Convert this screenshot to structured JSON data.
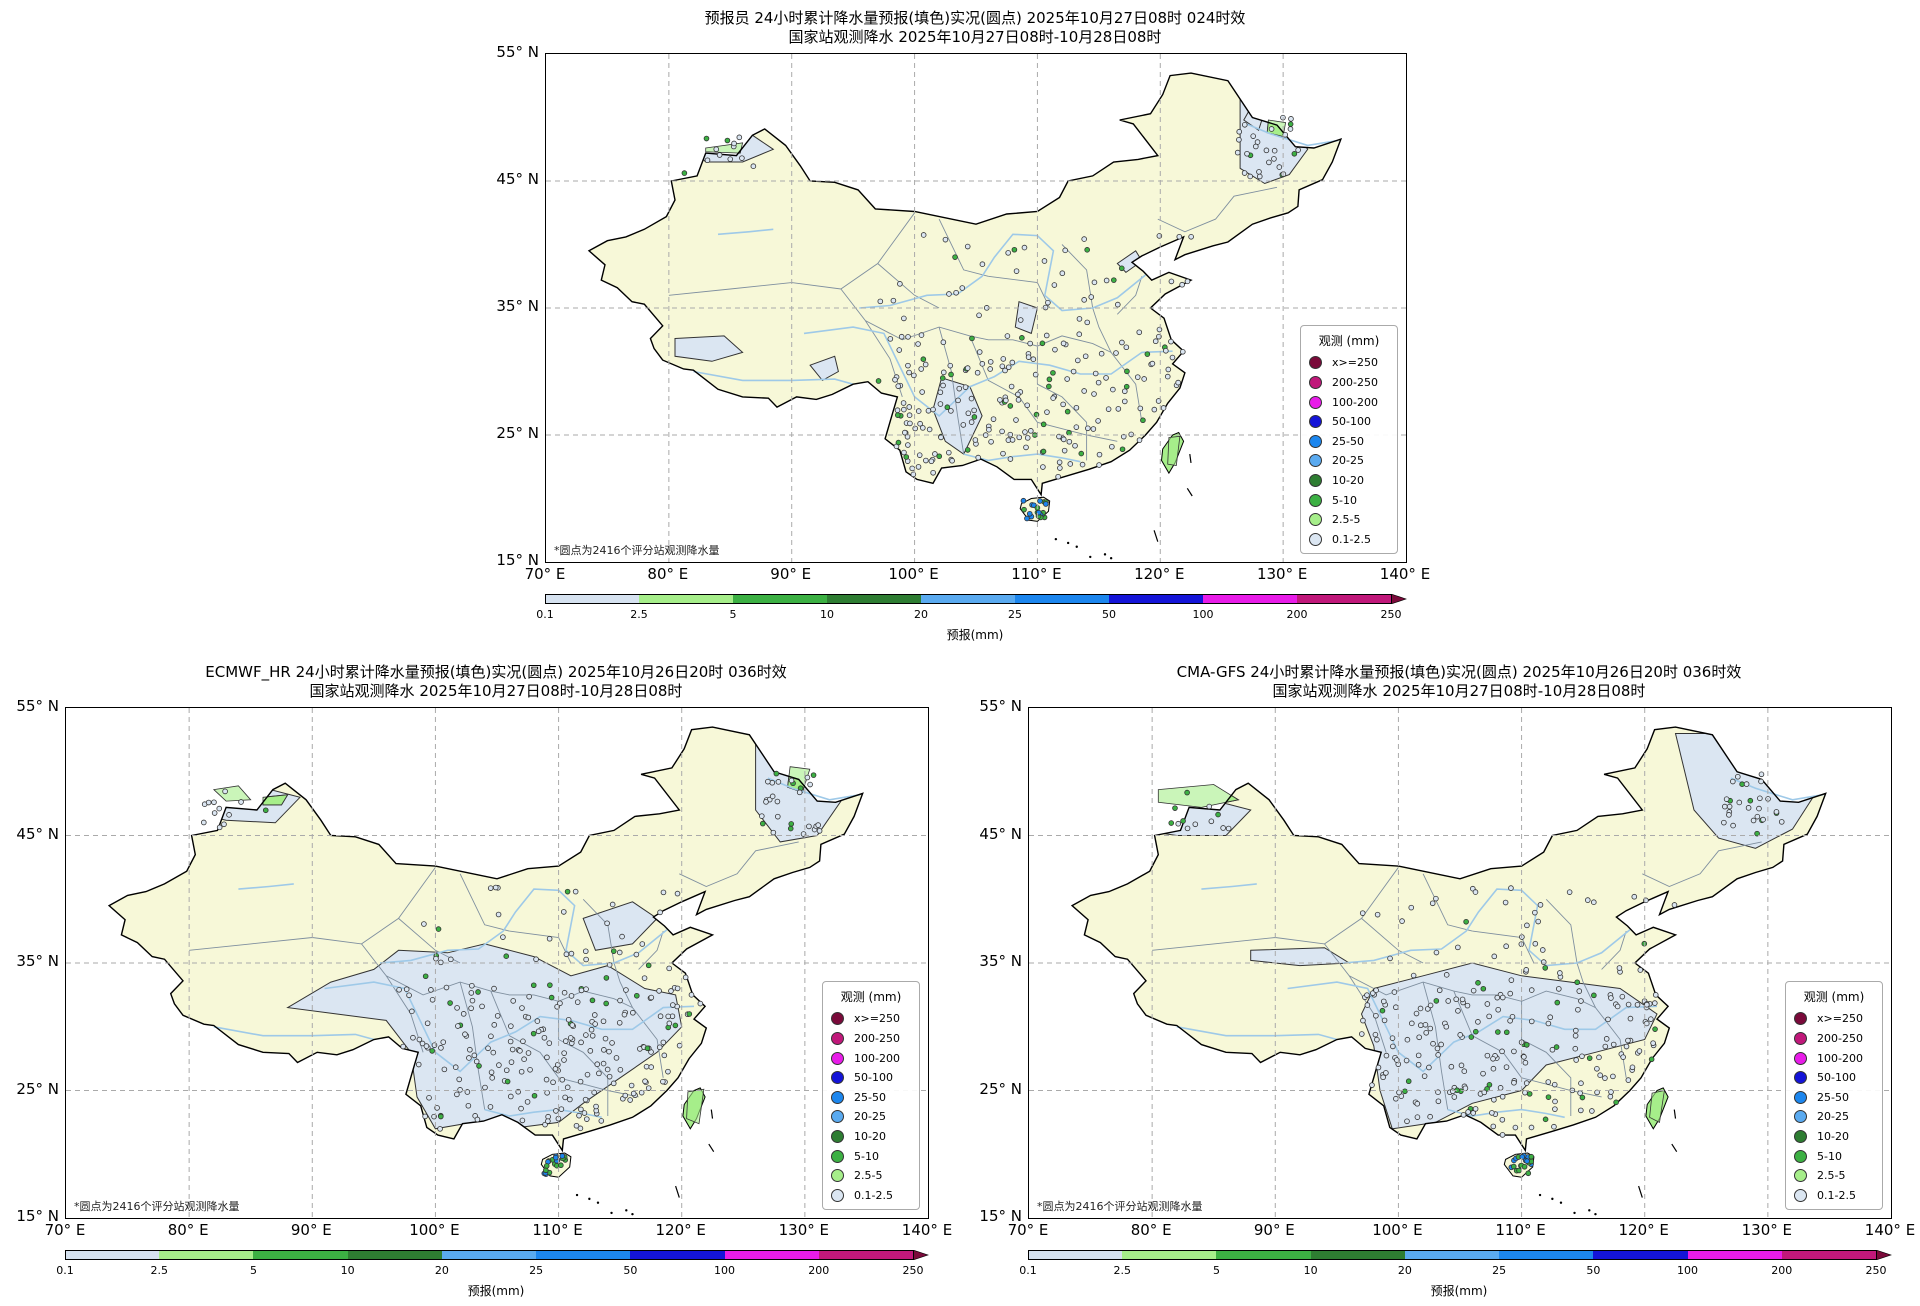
{
  "panels": [
    {
      "title_line1": "预报员 24小时累计降水量预报(填色)实况(圆点) 2025年10月27日08时 024时效",
      "title_line2": "国家站观测降水 2025年10月27日08时-10月28日08时"
    },
    {
      "title_line1": "ECMWF_HR 24小时累计降水量预报(填色)实况(圆点) 2025年10月26日20时 036时效",
      "title_line2": "国家站观测降水 2025年10月27日08时-10月28日08时"
    },
    {
      "title_line1": "CMA-GFS 24小时累计降水量预报(填色)实况(圆点) 2025年10月26日20时 036时效",
      "title_line2": "国家站观测降水 2025年10月27日08时-10月28日08时"
    }
  ],
  "axes": {
    "lat_labels": [
      "55° N",
      "45° N",
      "35° N",
      "25° N",
      "15° N"
    ],
    "lon_labels": [
      "70° E",
      "80° E",
      "90° E",
      "100° E",
      "110° E",
      "120° E",
      "130° E",
      "140° E"
    ]
  },
  "note": "*圆点为2416个评分站观测降水量",
  "legend": {
    "title": "观测 (mm)",
    "items": [
      {
        "label": "x>=250",
        "color": "#7a0a3a"
      },
      {
        "label": "200-250",
        "color": "#c0187a"
      },
      {
        "label": "100-200",
        "color": "#e81ce8"
      },
      {
        "label": "50-100",
        "color": "#1414d8"
      },
      {
        "label": "25-50",
        "color": "#1c86ee"
      },
      {
        "label": "20-25",
        "color": "#5aaaf0"
      },
      {
        "label": "10-20",
        "color": "#2e7d32"
      },
      {
        "label": "5-10",
        "color": "#3cb043"
      },
      {
        "label": "2.5-5",
        "color": "#a6ee8a"
      },
      {
        "label": "0.1-2.5",
        "color": "#dbe6f2"
      }
    ]
  },
  "colorbar": {
    "label": "预报(mm)",
    "ticks": [
      "0.1",
      "2.5",
      "5",
      "10",
      "20",
      "25",
      "50",
      "100",
      "200",
      "250"
    ],
    "colors": [
      "#d6e2f0",
      "#a6ee8a",
      "#3cb043",
      "#2e7d32",
      "#5aaaf0",
      "#1c86ee",
      "#1414d8",
      "#e81ce8",
      "#c0187a"
    ]
  },
  "colors": {
    "land": "#f7f8d8",
    "light_rain": "#dbe6f2",
    "rain_green": "#a6ee8a",
    "river": "#9ec9e8",
    "grid": "#aaaaaa"
  }
}
